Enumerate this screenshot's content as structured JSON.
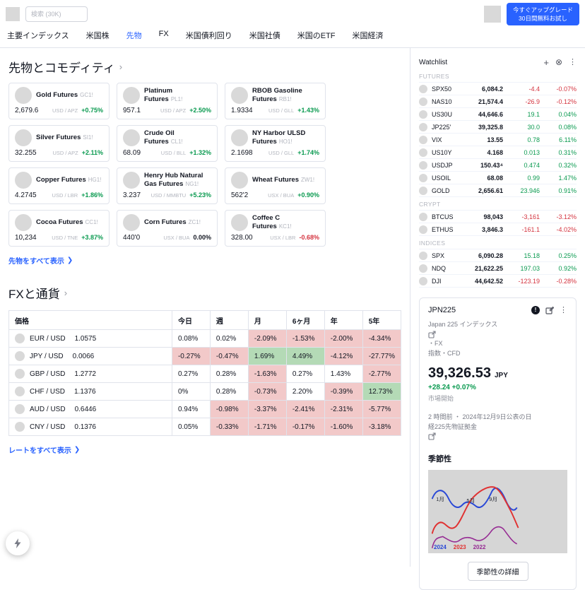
{
  "colors": {
    "accent_blue": "#2962ff",
    "green_text": "#0a9a50",
    "red_text": "#d4333f",
    "neg_cell_bg": "#f2c9c9",
    "pos_cell_bg": "#b4dab6",
    "legend_2024": "#2948d6",
    "legend_2023": "#e03131",
    "legend_2022": "#962b93"
  },
  "icons": {
    "chevron_right_small": "›",
    "chevron_right_link": "❯",
    "plus": "+",
    "close_circle": "⊗",
    "kebab": "⋮",
    "info": "!"
  },
  "header": {
    "search_placeholder": "検索 (30K)",
    "upgrade_line1": "今すぐアップグレード",
    "upgrade_line2": "30日間無料お試し"
  },
  "nav": {
    "items": [
      {
        "id": "indices",
        "label": "主要インデックス",
        "active": false
      },
      {
        "id": "us-stocks",
        "label": "米国株",
        "active": false
      },
      {
        "id": "futures",
        "label": "先物",
        "active": true
      },
      {
        "id": "fx",
        "label": "FX",
        "active": false
      },
      {
        "id": "us-yields",
        "label": "米国債利回り",
        "active": false
      },
      {
        "id": "us-bonds",
        "label": "米国社債",
        "active": false
      },
      {
        "id": "us-etf",
        "label": "米国のETF",
        "active": false
      },
      {
        "id": "us-economy",
        "label": "米国経済",
        "active": false
      }
    ]
  },
  "futures_section": {
    "title": "先物とコモディティ",
    "show_all": "先物をすべて表示",
    "cards": [
      {
        "name": "Gold Futures",
        "symbol": "GC1!",
        "price": "2,679.6",
        "unit": "USD / APZ",
        "change": "+0.75%",
        "dir": "up"
      },
      {
        "name": "Platinum Futures",
        "symbol": "PL1!",
        "price": "957.1",
        "unit": "USD / APZ",
        "change": "+2.50%",
        "dir": "up"
      },
      {
        "name": "RBOB Gasoline Futures",
        "symbol": "RB1!",
        "price": "1.9334",
        "unit": "USD / GLL",
        "change": "+1.43%",
        "dir": "up"
      },
      {
        "name": "Silver Futures",
        "symbol": "SI1!",
        "price": "32.255",
        "unit": "USD / APZ",
        "change": "+2.11%",
        "dir": "up"
      },
      {
        "name": "Crude Oil Futures",
        "symbol": "CL1!",
        "price": "68.09",
        "unit": "USD / BLL",
        "change": "+1.32%",
        "dir": "up"
      },
      {
        "name": "NY Harbor ULSD Futures",
        "symbol": "HO1!",
        "price": "2.1698",
        "unit": "USD / GLL",
        "change": "+1.74%",
        "dir": "up"
      },
      {
        "name": "Copper Futures",
        "symbol": "HG1!",
        "price": "4.2745",
        "unit": "USD / LBR",
        "change": "+1.86%",
        "dir": "up"
      },
      {
        "name": "Henry Hub Natural Gas Futures",
        "symbol": "NG1!",
        "price": "3.237",
        "unit": "USD / MMBTU",
        "change": "+5.23%",
        "dir": "up"
      },
      {
        "name": "Wheat Futures",
        "symbol": "ZW1!",
        "price": "562'2",
        "unit": "USX / BUA",
        "change": "+0.90%",
        "dir": "up"
      },
      {
        "name": "Cocoa Futures",
        "symbol": "CC1!",
        "price": "10,234",
        "unit": "USD / TNE",
        "change": "+3.87%",
        "dir": "up"
      },
      {
        "name": "Corn Futures",
        "symbol": "ZC1!",
        "price": "440'0",
        "unit": "USX / BUA",
        "change": "0.00%",
        "dir": "flat"
      },
      {
        "name": "Coffee C Futures",
        "symbol": "KC1!",
        "price": "328.00",
        "unit": "USX / LBR",
        "change": "-0.68%",
        "dir": "down"
      }
    ]
  },
  "fx_section": {
    "title": "FXと通貨",
    "show_all": "レートをすべて表示",
    "headers": [
      "価格",
      "今日",
      "週",
      "月",
      "6ヶ月",
      "年",
      "5年"
    ],
    "rows": [
      {
        "pair": "EUR / USD",
        "price": "1.0575",
        "cells": [
          {
            "v": "0.08%",
            "bg": "none"
          },
          {
            "v": "0.02%",
            "bg": "none"
          },
          {
            "v": "-2.09%",
            "bg": "neg"
          },
          {
            "v": "-1.53%",
            "bg": "neg"
          },
          {
            "v": "-2.00%",
            "bg": "neg"
          },
          {
            "v": "-4.34%",
            "bg": "neg"
          }
        ]
      },
      {
        "pair": "JPY / USD",
        "price": "0.0066",
        "cells": [
          {
            "v": "-0.27%",
            "bg": "neg"
          },
          {
            "v": "-0.47%",
            "bg": "neg"
          },
          {
            "v": "1.69%",
            "bg": "pos"
          },
          {
            "v": "4.49%",
            "bg": "pos"
          },
          {
            "v": "-4.12%",
            "bg": "neg"
          },
          {
            "v": "-27.77%",
            "bg": "neg"
          }
        ]
      },
      {
        "pair": "GBP / USD",
        "price": "1.2772",
        "cells": [
          {
            "v": "0.27%",
            "bg": "none"
          },
          {
            "v": "0.28%",
            "bg": "none"
          },
          {
            "v": "-1.63%",
            "bg": "neg"
          },
          {
            "v": "0.27%",
            "bg": "none"
          },
          {
            "v": "1.43%",
            "bg": "none"
          },
          {
            "v": "-2.77%",
            "bg": "neg"
          }
        ]
      },
      {
        "pair": "CHF / USD",
        "price": "1.1376",
        "cells": [
          {
            "v": "0%",
            "bg": "none"
          },
          {
            "v": "0.28%",
            "bg": "none"
          },
          {
            "v": "-0.73%",
            "bg": "neg"
          },
          {
            "v": "2.20%",
            "bg": "none"
          },
          {
            "v": "-0.39%",
            "bg": "neg"
          },
          {
            "v": "12.73%",
            "bg": "pos"
          }
        ]
      },
      {
        "pair": "AUD / USD",
        "price": "0.6446",
        "cells": [
          {
            "v": "0.94%",
            "bg": "none"
          },
          {
            "v": "-0.98%",
            "bg": "neg"
          },
          {
            "v": "-3.37%",
            "bg": "neg"
          },
          {
            "v": "-2.41%",
            "bg": "neg"
          },
          {
            "v": "-2.31%",
            "bg": "neg"
          },
          {
            "v": "-5.77%",
            "bg": "neg"
          }
        ]
      },
      {
        "pair": "CNY / USD",
        "price": "0.1376",
        "cells": [
          {
            "v": "0.05%",
            "bg": "none"
          },
          {
            "v": "-0.33%",
            "bg": "neg"
          },
          {
            "v": "-1.71%",
            "bg": "neg"
          },
          {
            "v": "-0.17%",
            "bg": "neg"
          },
          {
            "v": "-1.60%",
            "bg": "neg"
          },
          {
            "v": "-3.18%",
            "bg": "neg"
          }
        ]
      }
    ]
  },
  "watchlist": {
    "title": "Watchlist",
    "groups": [
      {
        "name": "FUTURES",
        "rows": [
          {
            "sym": "SPX50",
            "value": "6,084.2",
            "change": "-4.4",
            "pct": "-0.07%",
            "dir": "down"
          },
          {
            "sym": "NAS10",
            "value": "21,574.4",
            "change": "-26.9",
            "pct": "-0.12%",
            "dir": "down"
          },
          {
            "sym": "US30U",
            "value": "44,646.6",
            "change": "19.1",
            "pct": "0.04%",
            "dir": "up"
          },
          {
            "sym": "JP225'",
            "value": "39,325.8",
            "change": "30.0",
            "pct": "0.08%",
            "dir": "up"
          },
          {
            "sym": "VIX",
            "value": "13.55",
            "change": "0.78",
            "pct": "6.11%",
            "dir": "up"
          },
          {
            "sym": "US10Y",
            "value": "4.168",
            "change": "0.013",
            "pct": "0.31%",
            "dir": "up"
          },
          {
            "sym": "USDJP",
            "value": "150.43⁴",
            "change": "0.474",
            "pct": "0.32%",
            "dir": "up"
          },
          {
            "sym": "USOIL",
            "value": "68.08",
            "change": "0.99",
            "pct": "1.47%",
            "dir": "up"
          },
          {
            "sym": "GOLD",
            "value": "2,656.61",
            "change": "23.946",
            "pct": "0.91%",
            "dir": "up"
          }
        ]
      },
      {
        "name": "CRYPT",
        "rows": [
          {
            "sym": "BTCUS",
            "value": "98,043",
            "change": "-3,161",
            "pct": "-3.12%",
            "dir": "down"
          },
          {
            "sym": "ETHUS",
            "value": "3,846.3",
            "change": "-161.1",
            "pct": "-4.02%",
            "dir": "down"
          }
        ]
      },
      {
        "name": "INDICES",
        "rows": [
          {
            "sym": "SPX",
            "value": "6,090.28",
            "change": "15.18",
            "pct": "0.25%",
            "dir": "up"
          },
          {
            "sym": "NDQ",
            "value": "21,622.25",
            "change": "197.03",
            "pct": "0.92%",
            "dir": "up"
          },
          {
            "sym": "DJI",
            "value": "44,642.52",
            "change": "-123.19",
            "pct": "-0.28%",
            "dir": "down"
          }
        ]
      }
    ]
  },
  "detail": {
    "symbol": "JPN225",
    "description": "Japan 225 インデックス",
    "type_line1": "・FX",
    "type_line2": "指数・CFD",
    "price": "39,326.53",
    "currency": "JPY",
    "change": "+28.24 +0.07%",
    "status": "市場開始",
    "news_line1": "2 時間前 ・ 2024年12月9日公表の日",
    "news_line2": "経225先物証拠金",
    "seasonality_title": "季節性",
    "chart_x_labels": [
      "1月",
      "5月",
      "9月"
    ],
    "legend": [
      {
        "year": "2024",
        "color": "#2948d6"
      },
      {
        "year": "2023",
        "color": "#e03131"
      },
      {
        "year": "2022",
        "color": "#962b93"
      }
    ],
    "details_button": "季節性の詳細"
  }
}
